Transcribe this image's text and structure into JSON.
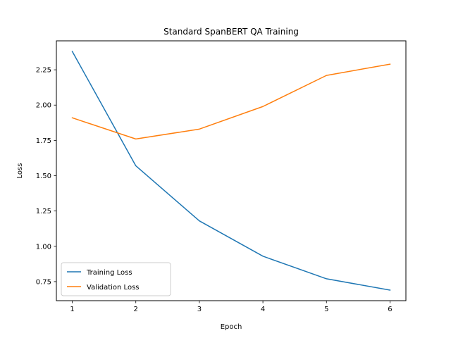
{
  "chart_data": {
    "type": "line",
    "title": "Standard SpanBERT QA Training",
    "xlabel": "Epoch",
    "ylabel": "Loss",
    "x": [
      1,
      2,
      3,
      4,
      5,
      6
    ],
    "xticks": [
      "1",
      "2",
      "3",
      "4",
      "5",
      "6"
    ],
    "yticks": [
      "0.75",
      "1.00",
      "1.25",
      "1.50",
      "1.75",
      "2.00",
      "2.25"
    ],
    "xlim": [
      0.75,
      6.25
    ],
    "ylim": [
      0.615,
      2.455
    ],
    "grid": false,
    "legend_position": "lower-left",
    "series": [
      {
        "name": "Training Loss",
        "color": "#1f77b4",
        "values": [
          2.38,
          1.57,
          1.18,
          0.93,
          0.77,
          0.69
        ]
      },
      {
        "name": "Validation Loss",
        "color": "#ff7f0e",
        "values": [
          1.91,
          1.76,
          1.83,
          1.99,
          2.21,
          2.29
        ]
      }
    ]
  }
}
